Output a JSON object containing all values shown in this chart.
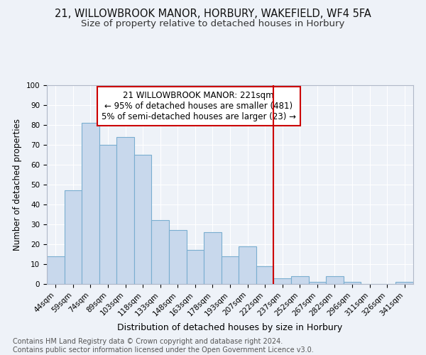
{
  "title1": "21, WILLOWBROOK MANOR, HORBURY, WAKEFIELD, WF4 5FA",
  "title2": "Size of property relative to detached houses in Horbury",
  "xlabel": "Distribution of detached houses by size in Horbury",
  "ylabel": "Number of detached properties",
  "footer": "Contains HM Land Registry data © Crown copyright and database right 2024.\nContains public sector information licensed under the Open Government Licence v3.0.",
  "categories": [
    "44sqm",
    "59sqm",
    "74sqm",
    "89sqm",
    "103sqm",
    "118sqm",
    "133sqm",
    "148sqm",
    "163sqm",
    "178sqm",
    "193sqm",
    "207sqm",
    "222sqm",
    "237sqm",
    "252sqm",
    "267sqm",
    "282sqm",
    "296sqm",
    "311sqm",
    "326sqm",
    "341sqm"
  ],
  "values": [
    14,
    47,
    81,
    70,
    74,
    65,
    32,
    27,
    17,
    26,
    14,
    19,
    9,
    3,
    4,
    1,
    4,
    1,
    0,
    0,
    1
  ],
  "bar_color": "#c8d8ec",
  "bar_edge_color": "#7aaed0",
  "reference_line_color": "#cc0000",
  "reference_line_index": 12,
  "annotation_text": "21 WILLOWBROOK MANOR: 221sqm\n← 95% of detached houses are smaller (481)\n5% of semi-detached houses are larger (23) →",
  "annotation_box_facecolor": "#ffffff",
  "annotation_box_edgecolor": "#cc0000",
  "ylim": [
    0,
    100
  ],
  "yticks": [
    0,
    10,
    20,
    30,
    40,
    50,
    60,
    70,
    80,
    90,
    100
  ],
  "background_color": "#eef2f8",
  "grid_color": "#ffffff",
  "title1_fontsize": 10.5,
  "title2_fontsize": 9.5,
  "xlabel_fontsize": 9,
  "ylabel_fontsize": 8.5,
  "tick_fontsize": 7.5,
  "annotation_fontsize": 8.5,
  "footer_fontsize": 7
}
